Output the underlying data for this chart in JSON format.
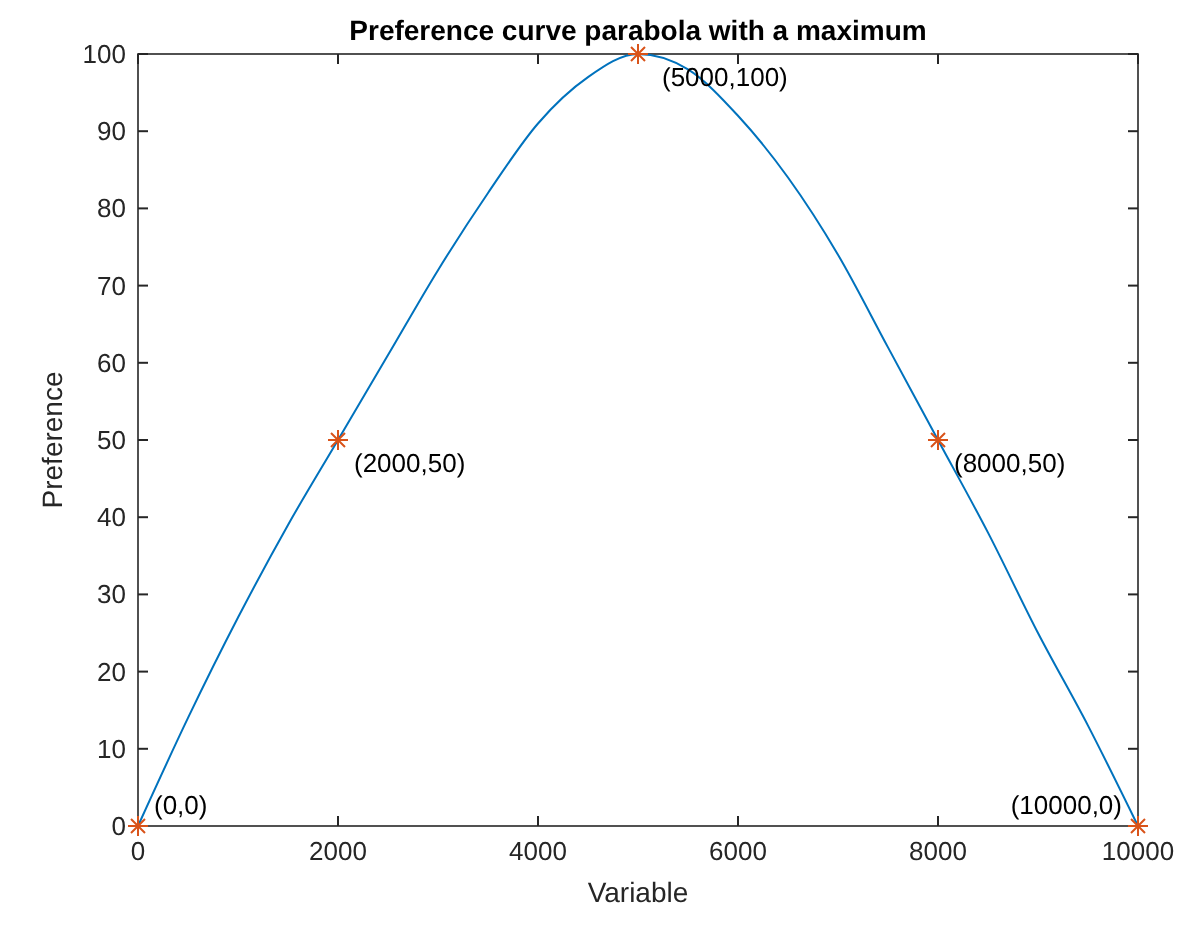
{
  "chart_data": {
    "type": "line",
    "title": "Preference curve parabola with a maximum",
    "xlabel": "Variable",
    "ylabel": "Preference",
    "xlim": [
      0,
      10000
    ],
    "ylim": [
      0,
      100
    ],
    "xticks": [
      0,
      2000,
      4000,
      6000,
      8000,
      10000
    ],
    "yticks": [
      0,
      10,
      20,
      30,
      40,
      50,
      60,
      70,
      80,
      90,
      100
    ],
    "series": [
      {
        "color": "#0072bd",
        "marker": "none",
        "x": [
          0,
          500,
          1000,
          1500,
          2000,
          2500,
          3000,
          3500,
          4000,
          4500,
          5000,
          5500,
          6000,
          6500,
          7000,
          7500,
          8000,
          8500,
          9000,
          9500,
          10000
        ],
        "values": [
          0,
          14,
          27,
          39,
          50,
          61,
          72,
          82,
          91,
          97,
          100,
          98,
          92,
          84,
          74,
          62,
          50,
          38,
          25,
          13,
          0
        ]
      },
      {
        "type": "scatter",
        "color": "#d95319",
        "marker": "cross",
        "x": [
          0,
          2000,
          5000,
          8000,
          10000
        ],
        "values": [
          0,
          50,
          100,
          50,
          0
        ]
      }
    ],
    "annotations": [
      {
        "text": "(0,0)",
        "x": 0,
        "y": 0
      },
      {
        "text": "(2000,50)",
        "x": 2000,
        "y": 50
      },
      {
        "text": "(5000,100)",
        "x": 5000,
        "y": 100
      },
      {
        "text": "(8000,50)",
        "x": 8000,
        "y": 50
      },
      {
        "text": "(10000,0)",
        "x": 10000,
        "y": 0
      }
    ]
  }
}
